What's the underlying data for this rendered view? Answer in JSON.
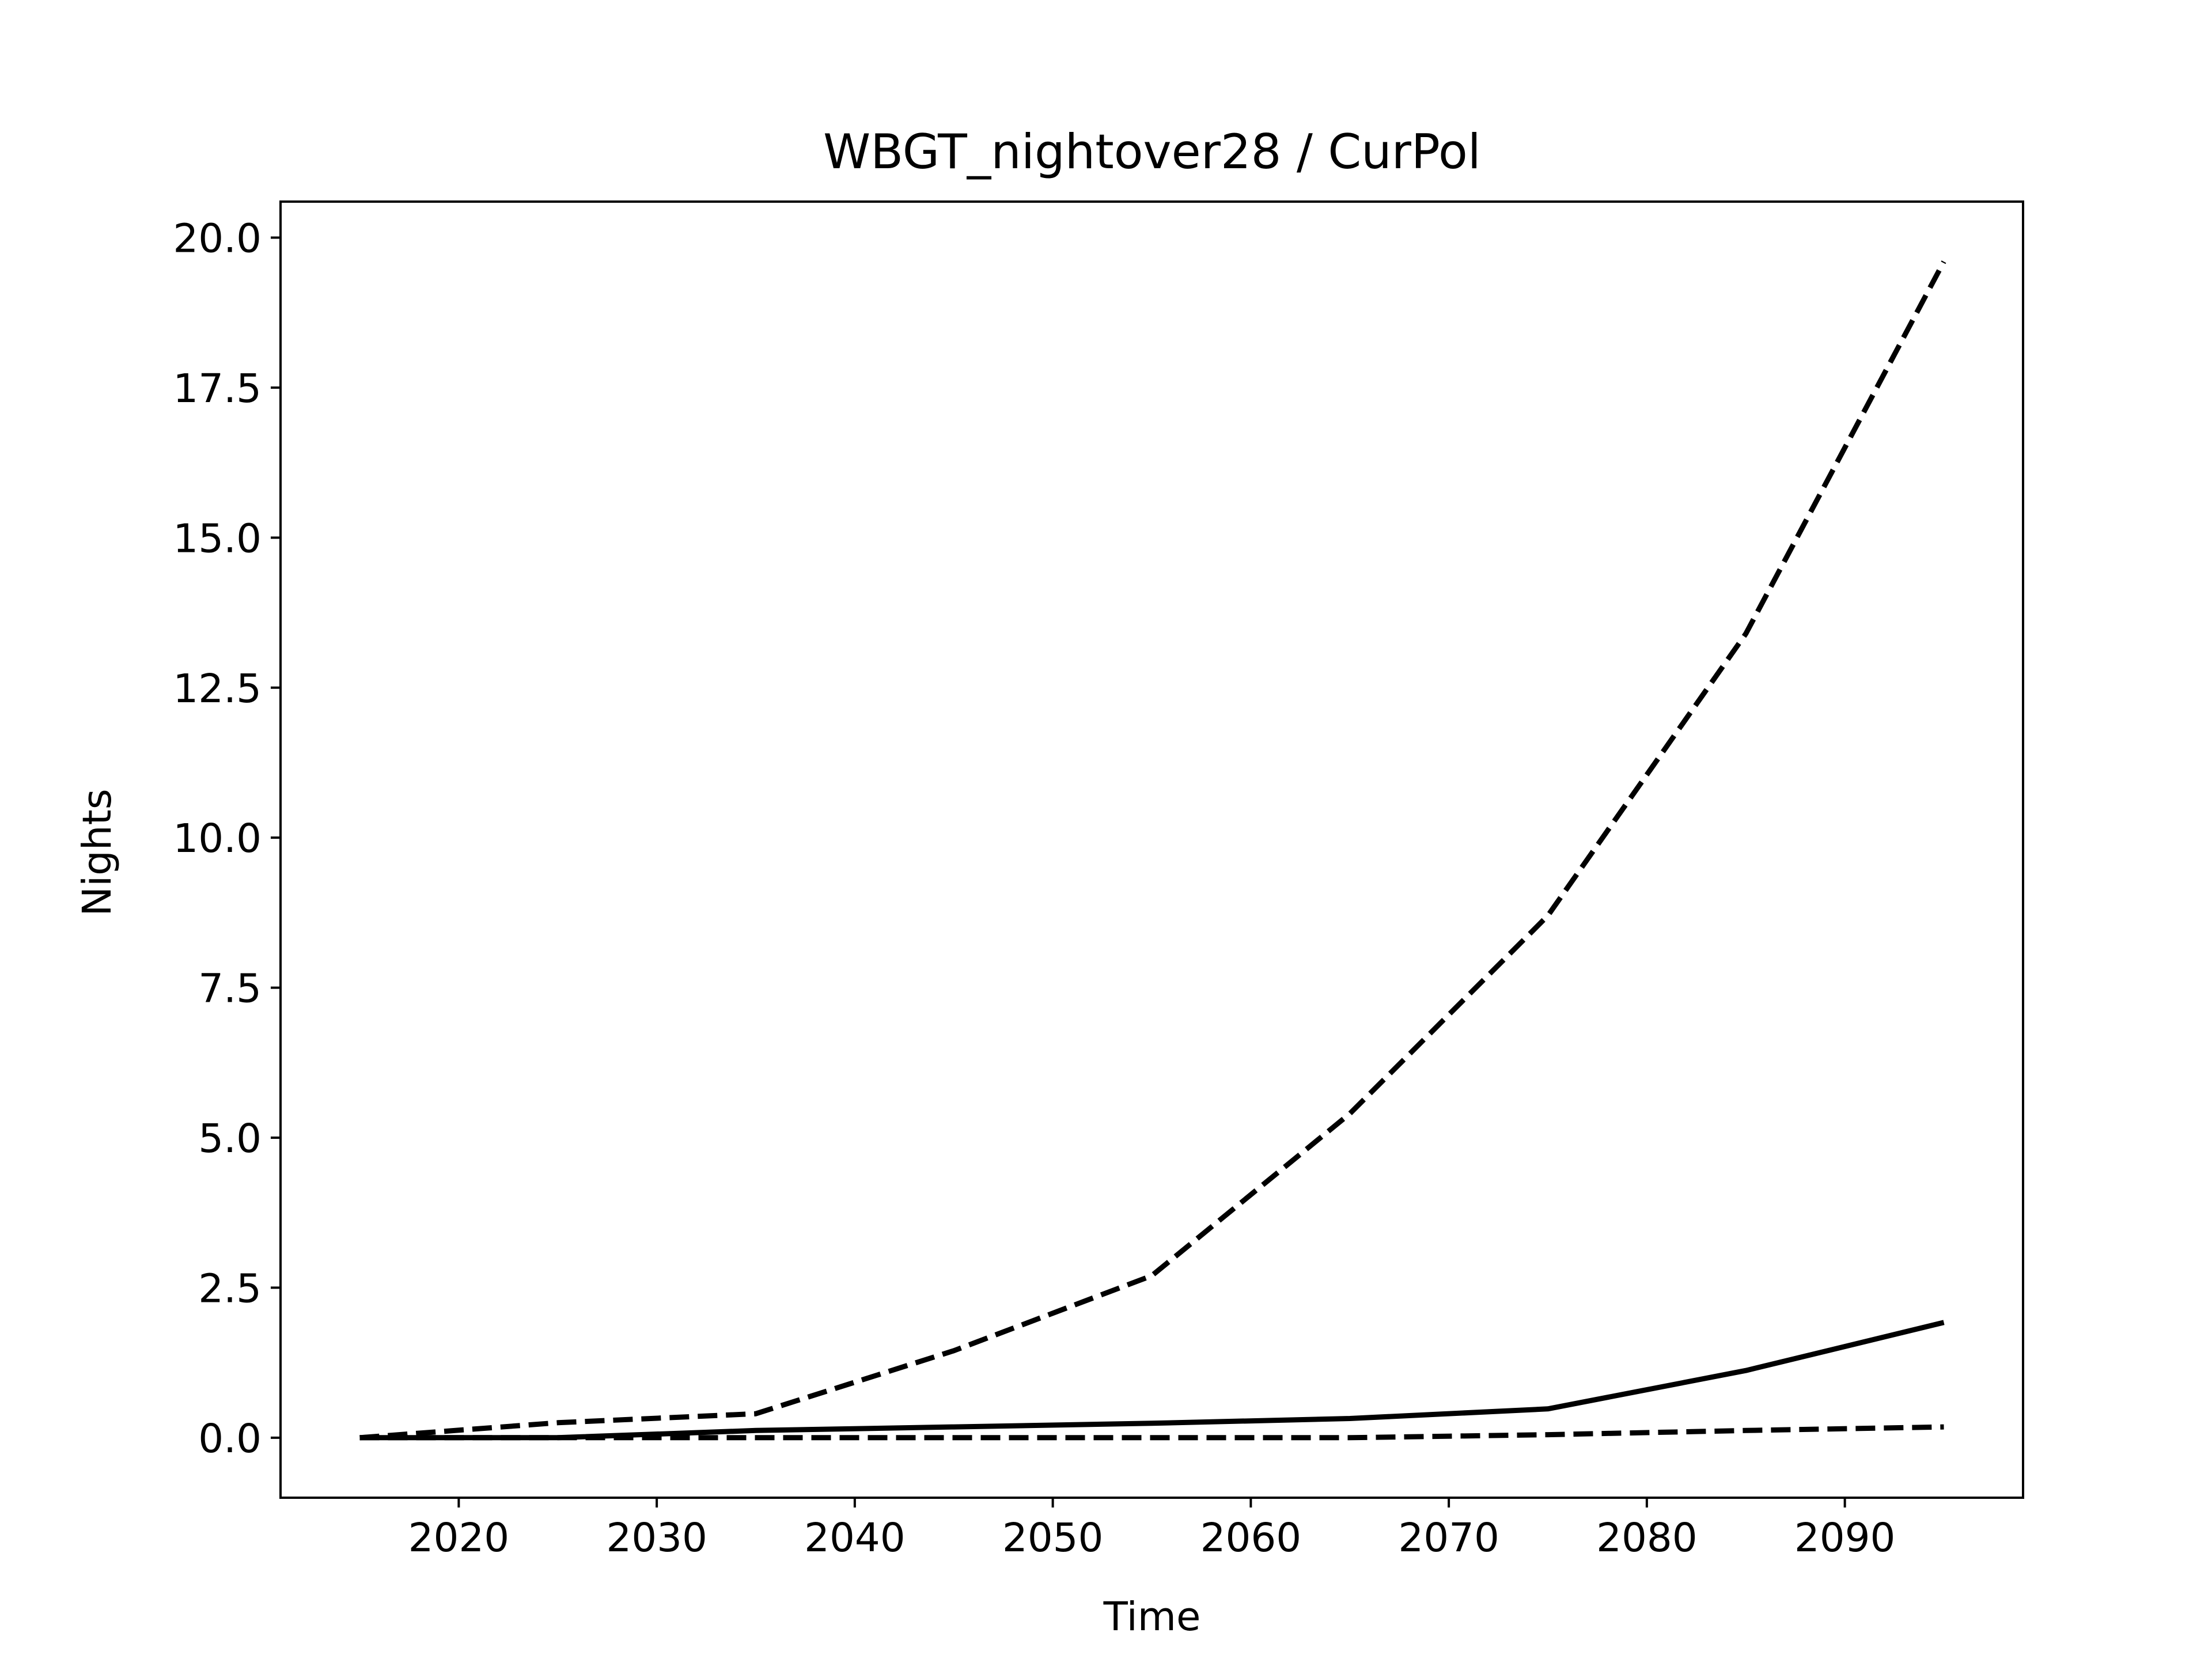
{
  "chart_data": {
    "type": "line",
    "title": "WBGT_nightover28 / CurPol",
    "xlabel": "Time",
    "ylabel": "Nights",
    "xlim": [
      2011,
      2099
    ],
    "ylim": [
      -1.0,
      20.6
    ],
    "xticks": [
      2020,
      2030,
      2040,
      2050,
      2060,
      2070,
      2080,
      2090
    ],
    "yticks": [
      0.0,
      2.5,
      5.0,
      7.5,
      10.0,
      12.5,
      15.0,
      17.5,
      20.0
    ],
    "ytick_labels": [
      "0.0",
      "2.5",
      "5.0",
      "7.5",
      "10.0",
      "12.5",
      "15.0",
      "17.5",
      "20.0"
    ],
    "grid": false,
    "legend": "none",
    "line_color": "#000000",
    "x": [
      2015,
      2025,
      2035,
      2045,
      2055,
      2065,
      2075,
      2085,
      2095
    ],
    "series": [
      {
        "style": "dashed",
        "values": [
          0.0,
          0.25,
          0.4,
          1.45,
          2.7,
          5.4,
          8.7,
          13.4,
          19.6
        ]
      },
      {
        "style": "solid",
        "values": [
          0.0,
          0.0,
          0.12,
          0.18,
          0.24,
          0.32,
          0.48,
          1.12,
          1.92
        ]
      },
      {
        "style": "dashed",
        "values": [
          0.0,
          0.0,
          0.0,
          0.0,
          0.0,
          0.0,
          0.05,
          0.12,
          0.18
        ]
      }
    ]
  }
}
